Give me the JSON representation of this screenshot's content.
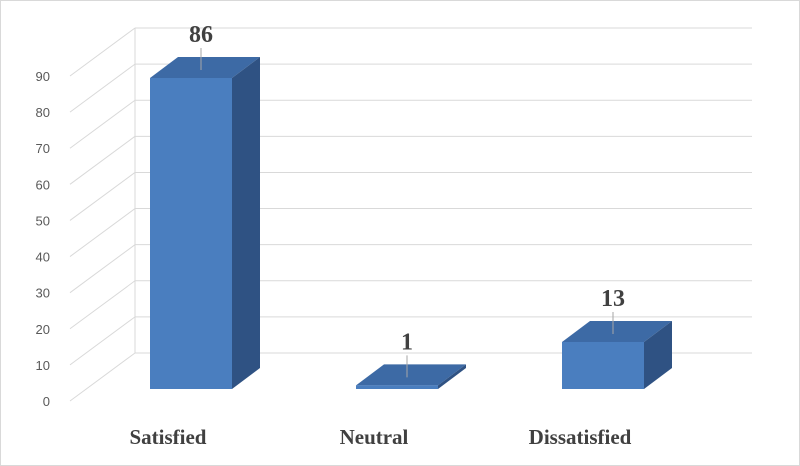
{
  "chart_data": {
    "type": "bar",
    "style": "3d-column",
    "categories": [
      "Satisfied",
      "Neutral",
      "Dissatisfied"
    ],
    "values": [
      86,
      1,
      13
    ],
    "data_labels": [
      "86",
      "1",
      "13"
    ],
    "title": "",
    "xlabel": "",
    "ylabel": "",
    "ylim": [
      0,
      90
    ],
    "yticks": [
      0,
      10,
      20,
      30,
      40,
      50,
      60,
      70,
      80,
      90
    ],
    "ytick_labels": [
      "0",
      "10",
      "20",
      "30",
      "40",
      "50",
      "60",
      "70",
      "80",
      "90"
    ],
    "grid": true,
    "legend": "none",
    "colors": {
      "bar_front": "#4a7ebf",
      "bar_top": "#3d6aa5",
      "bar_side": "#2f5283",
      "gridline": "#d9d9d9",
      "leader_line": "#a6a6a6",
      "text": "#404040",
      "tick_text": "#595959"
    }
  }
}
